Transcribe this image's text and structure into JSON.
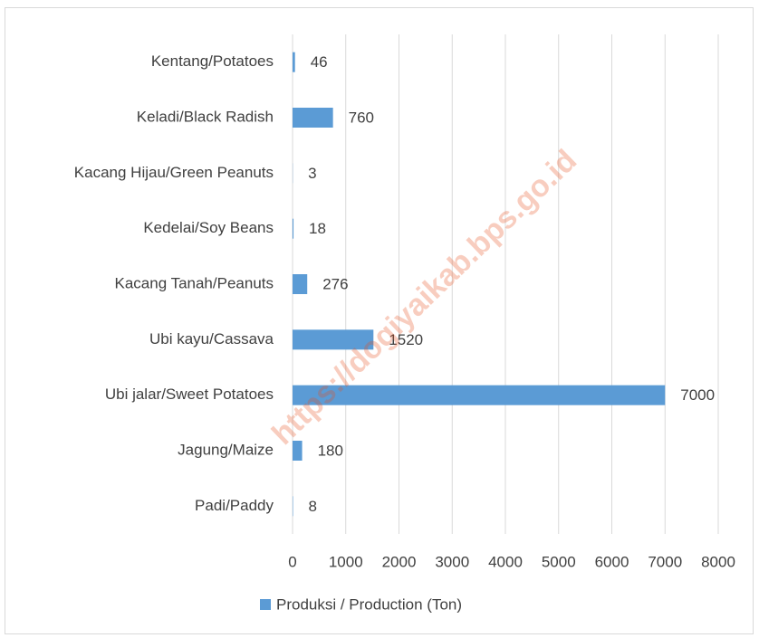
{
  "chart_data": {
    "type": "bar",
    "orientation": "horizontal",
    "categories": [
      "Kentang/Potatoes",
      "Keladi/Black Radish",
      "Kacang Hijau/Green Peanuts",
      "Kedelai/Soy Beans",
      "Kacang Tanah/Peanuts",
      "Ubi kayu/Cassava",
      "Ubi jalar/Sweet Potatoes",
      "Jagung/Maize",
      "Padi/Paddy"
    ],
    "series": [
      {
        "name": "Produksi / Production (Ton)",
        "color": "#5b9bd5",
        "values": [
          46,
          760,
          3,
          18,
          276,
          1520,
          7000,
          180,
          8
        ]
      }
    ],
    "xlim": [
      0,
      8000
    ],
    "xticks": [
      0,
      1000,
      2000,
      3000,
      4000,
      5000,
      6000,
      7000,
      8000
    ],
    "grid": true,
    "legend": "bottom",
    "watermark": "https://dogiyaikab.bps.go.id"
  }
}
